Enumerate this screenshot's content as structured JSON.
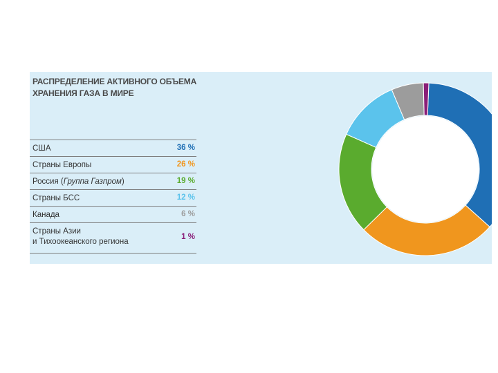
{
  "chart_data": {
    "type": "pie",
    "donut": true,
    "title": "РАСПРЕДЕЛЕНИЕ АКТИВНОГО ОБЪЕМА ХРАНЕНИЯ ГАЗА В МИРЕ",
    "categories": [
      "США",
      "Страны Европы",
      "Россия (Группа Газпром)",
      "Страны БСС",
      "Канада",
      "Страны Азии и Тихоокеанского региона"
    ],
    "values": [
      36,
      26,
      19,
      12,
      6,
      1
    ],
    "value_labels": [
      "36 %",
      "26 %",
      "19 %",
      "12 %",
      "6 %",
      "1 %"
    ],
    "colors": [
      "#1f6fb5",
      "#f0961e",
      "#5aab2e",
      "#5bc3ec",
      "#9c9c9c",
      "#8a1e78"
    ]
  },
  "rows": [
    {
      "label": "США",
      "value": "36 %"
    },
    {
      "label": "Страны Европы",
      "value": "26 %"
    },
    {
      "label_main": "Россия (",
      "label_italic": "Группа Газпром",
      "label_end": ")",
      "value": "19 %"
    },
    {
      "label": "Страны БСС",
      "value": "12 %"
    },
    {
      "label": "Канада",
      "value": "6 %"
    },
    {
      "label_line1": "Страны Азии",
      "label_line2": "и Тихоокеанского региона",
      "value": "1 %"
    }
  ]
}
